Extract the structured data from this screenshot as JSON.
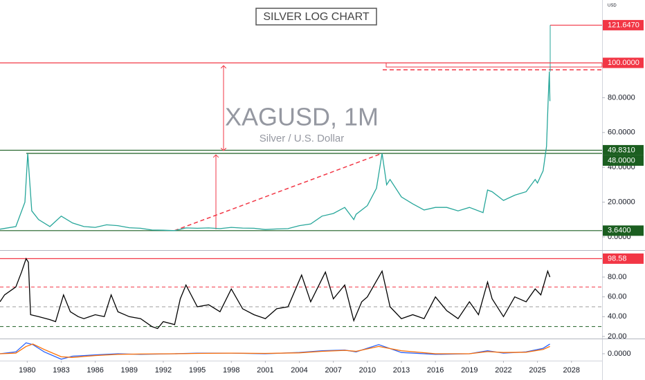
{
  "chart_data": [
    {
      "type": "line",
      "title": "SILVER LOG CHART",
      "symbol": "XAGUSD, 1M",
      "description": "Silver / U.S. Dollar",
      "currency": "USD",
      "xlim": [
        1977.6,
        2030.7
      ],
      "ylim": [
        -7.54,
        136.1
      ],
      "yticks": [
        {
          "value": 0,
          "label": "0.0000"
        },
        {
          "value": 20,
          "label": "20.0000"
        },
        {
          "value": 40,
          "label": "40.0000"
        },
        {
          "value": 60,
          "label": "60.0000"
        },
        {
          "value": 80,
          "label": "80.0000"
        }
      ],
      "color": "#26a69a",
      "x": [
        1977.6,
        1979,
        1979.8,
        1980.05,
        1980.4,
        1981,
        1982,
        1983,
        1984,
        1985,
        1986,
        1987,
        1988,
        1989,
        1990,
        1991,
        1992,
        1993,
        1994,
        1995,
        1996,
        1997,
        1998,
        1999,
        2000,
        2001,
        2002,
        2003,
        2004,
        2005,
        2006,
        2007,
        2008,
        2008.8,
        2009,
        2010,
        2010.8,
        2011.3,
        2011.7,
        2012,
        2013,
        2014,
        2015,
        2016,
        2017,
        2018,
        2019,
        2020.2,
        2020.6,
        2021,
        2022,
        2023,
        2024,
        2024.8,
        2025,
        2025.5,
        2025.8,
        2025.95,
        2026.05,
        2026.1
      ],
      "values": [
        4.5,
        6,
        20,
        48,
        15,
        10,
        6,
        12,
        8,
        6,
        5.5,
        7,
        6.5,
        5.3,
        5,
        4,
        3.9,
        3.64,
        5.2,
        5,
        5.2,
        4.8,
        5.5,
        5.1,
        5,
        4.3,
        4.6,
        4.8,
        6.5,
        7.5,
        12,
        13.5,
        17,
        10,
        13,
        18,
        28,
        48,
        30,
        33,
        23,
        19,
        15.5,
        17,
        17,
        15,
        17,
        14,
        27,
        26,
        21,
        24,
        26,
        33,
        31,
        38,
        52,
        80,
        95,
        78
      ],
      "levels": {
        "values": [
          121.647,
          100,
          49.831,
          48,
          3.64
        ],
        "value_labels": [
          "121.6470",
          "100.0000",
          "49.8310",
          "48.0000",
          "3.6400"
        ],
        "colors": [
          "#f23645",
          "#f23645",
          "#1b5e20",
          "#1b5e20",
          "#1b5e20"
        ]
      }
    },
    {
      "type": "line",
      "xlim": [
        1977.6,
        2030.7
      ],
      "ylim": [
        17.9,
        107.2
      ],
      "yticks": [
        {
          "value": 20,
          "label": "20.00"
        },
        {
          "value": 40,
          "label": "40.00"
        },
        {
          "value": 60,
          "label": "60.00"
        },
        {
          "value": 80,
          "label": "80.00"
        }
      ],
      "color": "#000000",
      "guides": [
        70,
        50,
        30
      ],
      "guide_colors": [
        "#f23645",
        "#9e9e9e",
        "#1b5e20"
      ],
      "x": [
        1977.6,
        1978,
        1979,
        1979.5,
        1979.9,
        1980.1,
        1980.3,
        1981,
        1982,
        1982.5,
        1983.2,
        1983.8,
        1984.5,
        1985,
        1986,
        1986.8,
        1987.4,
        1988,
        1989,
        1990,
        1991,
        1991.5,
        1992,
        1993,
        1993.5,
        1994,
        1995,
        1996,
        1997,
        1998,
        1999,
        2000,
        2001,
        2002,
        2003,
        2004.2,
        2005,
        2006.3,
        2007,
        2008,
        2008.8,
        2009.5,
        2010,
        2011.3,
        2012,
        2013,
        2014,
        2015,
        2016,
        2017,
        2018,
        2019,
        2019.8,
        2020.6,
        2021,
        2022,
        2023,
        2024,
        2024.8,
        2025.3,
        2025.9,
        2026.1
      ],
      "values": [
        55,
        62,
        70,
        85,
        98.58,
        95,
        42,
        40,
        37,
        35,
        62,
        45,
        40,
        38,
        42,
        40,
        62,
        45,
        40,
        38,
        30,
        28,
        35,
        32,
        58,
        72,
        50,
        52,
        45,
        68,
        48,
        42,
        38,
        48,
        50,
        82,
        55,
        85,
        58,
        72,
        36,
        55,
        60,
        86,
        50,
        38,
        42,
        38,
        60,
        46,
        38,
        55,
        42,
        75,
        58,
        40,
        60,
        55,
        68,
        62,
        86,
        80
      ],
      "levels": {
        "values": [
          98.58
        ],
        "value_labels": [
          "98.58"
        ],
        "colors": [
          "#f23645"
        ]
      }
    },
    {
      "type": "line",
      "xlim": [
        1977.6,
        2030.7
      ],
      "ylim": [
        -1.14,
        2.5
      ],
      "yticks": [
        {
          "value": 0,
          "label": "0.0000"
        }
      ],
      "xticks": [
        1980,
        1983,
        1986,
        1989,
        1992,
        1995,
        1998,
        2001,
        2004,
        2007,
        2010,
        2013,
        2016,
        2019,
        2022,
        2025,
        2028
      ],
      "x": [
        1977.6,
        1979,
        1979.9,
        1980.5,
        1981.5,
        1983,
        1984,
        1986,
        1988,
        1990,
        1993,
        1995,
        1998,
        2001,
        2004,
        2006,
        2008,
        2009,
        2011,
        2013,
        2016,
        2019,
        2020.6,
        2022,
        2024,
        2025.5,
        2026.1
      ],
      "series": [
        {
          "color": "#2962ff",
          "values": [
            0,
            0.3,
            1.8,
            1.5,
            0.3,
            -0.9,
            -0.4,
            -0.2,
            0,
            -0.1,
            0,
            0.1,
            0.1,
            0,
            0.2,
            0.5,
            0.6,
            0.3,
            1.5,
            0.2,
            -0.1,
            0,
            0.5,
            0.1,
            0.3,
            0.9,
            1.6
          ]
        },
        {
          "color": "#ff6d00",
          "values": [
            0,
            0.1,
            1.2,
            1.6,
            0.7,
            -0.5,
            -0.6,
            -0.3,
            -0.1,
            -0.05,
            0,
            0.05,
            0.1,
            0.05,
            0.15,
            0.4,
            0.55,
            0.4,
            1.2,
            0.5,
            0,
            0,
            0.35,
            0.2,
            0.25,
            0.7,
            1.2
          ]
        }
      ]
    }
  ]
}
